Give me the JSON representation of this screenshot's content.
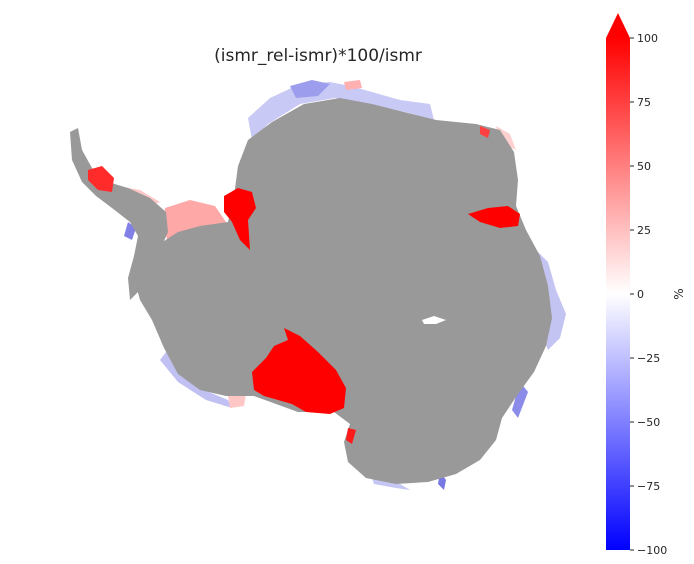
{
  "title": "(ismr_rel-ismr)*100/ismr",
  "colorbar": {
    "label": "%",
    "min": -100,
    "max": 100,
    "extend": "max",
    "colormap": [
      "#0000ff",
      "#ffffff",
      "#ff0000"
    ],
    "ticks": [
      {
        "value": 100,
        "label": "100"
      },
      {
        "value": 75,
        "label": "75"
      },
      {
        "value": 50,
        "label": "50"
      },
      {
        "value": 25,
        "label": "25"
      },
      {
        "value": 0,
        "label": "0"
      },
      {
        "value": -25,
        "label": "−25"
      },
      {
        "value": -50,
        "label": "−50"
      },
      {
        "value": -75,
        "label": "−75"
      },
      {
        "value": -100,
        "label": "−100"
      }
    ]
  },
  "map": {
    "grounded_ice_color": "#999999",
    "background_color": "#ffffff"
  }
}
